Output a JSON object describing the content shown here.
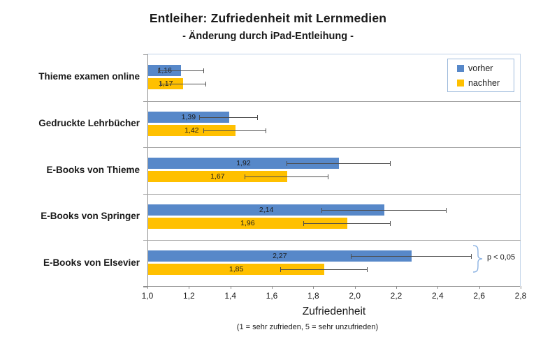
{
  "title": "Entleiher: Zufriedenheit mit Lernmedien",
  "subtitle": "- Änderung durch iPad-Entleihung -",
  "annotation": {
    "text": "p < 0,05"
  },
  "axis": {
    "label": "Zufriedenheit",
    "note": "(1 = sehr zufrieden, 5 = sehr unzufrieden)"
  },
  "colors": {
    "vorher": "#5788C9",
    "nachher": "#FFC000",
    "grid": "#A6A6A6",
    "axis": "#8C8C8C",
    "plot_border": "#BFD2E8",
    "error_bar": "#4D4D4D",
    "brace": "#8EB4E3",
    "legend_border": "#9FBBDC"
  },
  "chart_data": {
    "type": "bar",
    "orientation": "horizontal",
    "title": "Entleiher: Zufriedenheit mit Lernmedien",
    "subtitle": "- Änderung durch iPad-Entleihung -",
    "xlabel": "Zufriedenheit",
    "xlabel_note": "(1 = sehr zufrieden, 5 = sehr unzufrieden)",
    "xlim": [
      1.0,
      2.8
    ],
    "xtick_labels": [
      "1,0",
      "1,2",
      "1,4",
      "1,6",
      "1,8",
      "2,0",
      "2,2",
      "2,4",
      "2,6",
      "2,8"
    ],
    "grid": "category-separators-only",
    "legend_position": "top-right-inside",
    "categories": [
      "Thieme examen online",
      "Gedruckte Lehrbücher",
      "E-Books von Thieme",
      "E-Books von Springer",
      "E-Books von Elsevier"
    ],
    "series": [
      {
        "name": "vorher",
        "color_key": "vorher",
        "values": [
          1.16,
          1.39,
          1.92,
          2.14,
          2.27
        ],
        "labels": [
          "1,16",
          "1,39",
          "1,92",
          "2,14",
          "2,27"
        ],
        "error": [
          0.11,
          0.14,
          0.25,
          0.3,
          0.29
        ]
      },
      {
        "name": "nachher",
        "color_key": "nachher",
        "values": [
          1.17,
          1.42,
          1.67,
          1.96,
          1.85
        ],
        "labels": [
          "1,17",
          "1,42",
          "1,67",
          "1,96",
          "1,85"
        ],
        "error": [
          0.11,
          0.15,
          0.2,
          0.21,
          0.21
        ]
      }
    ],
    "significance_annotation": {
      "text": "p < 0,05",
      "applies_to_category": "E-Books von Elsevier"
    }
  }
}
